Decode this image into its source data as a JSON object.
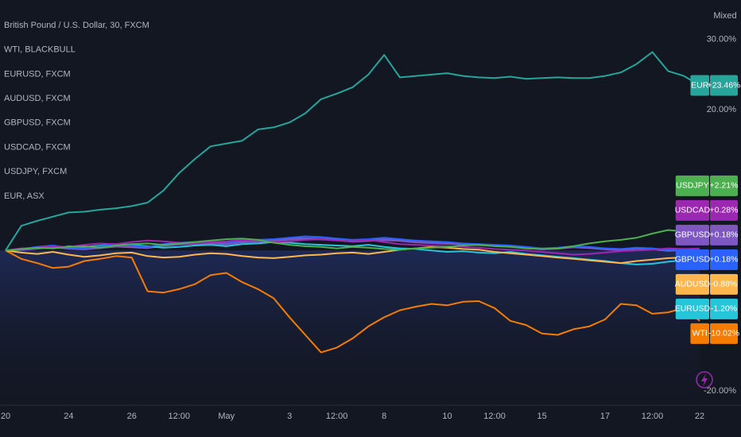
{
  "chart_data": {
    "type": "line",
    "scale_label": "Mixed",
    "categories": [
      "20",
      null,
      null,
      null,
      "24",
      null,
      null,
      null,
      "26",
      null,
      null,
      "12:00",
      null,
      null,
      "May",
      null,
      null,
      null,
      "3",
      null,
      null,
      "12:00",
      null,
      null,
      "8",
      null,
      null,
      null,
      "10",
      null,
      null,
      "12:00",
      null,
      null,
      "15",
      null,
      null,
      null,
      "17",
      null,
      null,
      "12:00",
      null,
      null,
      "22"
    ],
    "ylim": [
      -22,
      35.6
    ],
    "yticks": [
      {
        "value": 30,
        "label": "30.00%"
      },
      {
        "value": 20,
        "label": "20.00%"
      },
      {
        "value": -20,
        "label": "-20.00%"
      }
    ],
    "series": [
      {
        "name": "British Pound / U.S. Dollar, 30, FXCM",
        "tag": "GBPUSD",
        "color": "#7e57c2",
        "values": [
          0,
          0.1,
          0.3,
          0.5,
          0.3,
          0.2,
          0.4,
          0.6,
          0.5,
          0.4,
          0.7,
          0.9,
          1.0,
          1.1,
          0.9,
          1.2,
          1.3,
          1.4,
          1.6,
          1.7,
          1.6,
          1.5,
          1.3,
          1.4,
          1.5,
          1.4,
          1.2,
          1.1,
          1.0,
          0.9,
          0.8,
          0.7,
          0.6,
          0.4,
          0.2,
          0.3,
          0.5,
          0.4,
          0.2,
          0.1,
          0.3,
          0.2,
          0.0,
          0.1,
          0.18
        ],
        "value_labels": [
          null,
          null,
          null,
          null,
          null,
          null,
          null,
          null,
          null,
          null,
          null,
          null,
          null,
          null,
          null,
          null,
          null,
          null,
          null,
          null,
          null,
          null,
          null,
          null,
          null,
          null,
          null,
          null,
          null,
          null,
          null,
          null,
          null,
          null,
          null,
          null,
          null,
          null,
          null,
          null,
          null,
          null,
          null,
          null,
          "+0.18%"
        ]
      },
      {
        "name": "WTI, BLACKBULL",
        "tag": "WTI",
        "color": "#f57c00",
        "values": [
          0,
          -1.2,
          -1.8,
          -2.5,
          -2.3,
          -1.5,
          -1.2,
          -0.8,
          -1.0,
          -5.8,
          -6.0,
          -5.5,
          -4.8,
          -3.5,
          -3.2,
          -4.5,
          -5.5,
          -6.8,
          -9.5,
          -12,
          -14.5,
          -13.8,
          -12.5,
          -10.8,
          -9.5,
          -8.5,
          -8.0,
          -7.6,
          -7.8,
          -7.3,
          -7.2,
          -8.2,
          -10.0,
          -10.6,
          -11.8,
          -12.0,
          -11.2,
          -10.8,
          -9.8,
          -7.6,
          -7.8,
          -9.0,
          -8.8,
          -8.2,
          -10.02
        ],
        "value_labels": [
          null,
          null,
          null,
          null,
          null,
          null,
          null,
          null,
          null,
          null,
          null,
          null,
          null,
          null,
          null,
          null,
          null,
          null,
          null,
          null,
          null,
          null,
          null,
          null,
          null,
          null,
          null,
          null,
          null,
          null,
          null,
          null,
          null,
          null,
          null,
          null,
          null,
          null,
          null,
          null,
          null,
          null,
          null,
          null,
          "-10.02%"
        ]
      },
      {
        "name": "EURUSD, FXCM",
        "tag": "EURUSD",
        "color": "#26c6da",
        "values": [
          0,
          0.2,
          0.4,
          0.3,
          0.6,
          0.5,
          0.7,
          0.9,
          0.8,
          0.6,
          0.4,
          0.5,
          0.7,
          0.8,
          0.6,
          0.9,
          1.0,
          1.2,
          1.1,
          0.9,
          0.8,
          0.7,
          0.6,
          0.8,
          0.5,
          0.3,
          0.2,
          0.0,
          -0.2,
          -0.1,
          -0.3,
          -0.4,
          -0.2,
          -0.5,
          -0.7,
          -0.9,
          -1.1,
          -1.3,
          -1.5,
          -1.8,
          -2.0,
          -1.9,
          -1.6,
          -1.4,
          -1.2
        ],
        "value_labels": [
          null,
          null,
          null,
          null,
          null,
          null,
          null,
          null,
          null,
          null,
          null,
          null,
          null,
          null,
          null,
          null,
          null,
          null,
          null,
          null,
          null,
          null,
          null,
          null,
          null,
          null,
          null,
          null,
          null,
          null,
          null,
          null,
          null,
          null,
          null,
          null,
          null,
          null,
          null,
          null,
          null,
          null,
          null,
          null,
          "-1.20%"
        ]
      },
      {
        "name": "AUDUSD, FXCM",
        "tag": "AUDUSD",
        "color": "#ffb74d",
        "values": [
          0,
          -0.3,
          -0.5,
          -0.2,
          -0.6,
          -0.9,
          -0.7,
          -0.4,
          -0.3,
          -0.8,
          -1.0,
          -0.9,
          -0.6,
          -0.4,
          -0.5,
          -0.8,
          -1.0,
          -1.1,
          -0.9,
          -0.7,
          -0.6,
          -0.4,
          -0.3,
          -0.5,
          -0.2,
          0.1,
          0.3,
          0.5,
          0.4,
          0.2,
          0.1,
          -0.2,
          -0.4,
          -0.6,
          -0.8,
          -1.0,
          -1.2,
          -1.4,
          -1.6,
          -1.8,
          -1.5,
          -1.3,
          -1.1,
          -1.0,
          -0.88
        ],
        "value_labels": [
          null,
          null,
          null,
          null,
          null,
          null,
          null,
          null,
          null,
          null,
          null,
          null,
          null,
          null,
          null,
          null,
          null,
          null,
          null,
          null,
          null,
          null,
          null,
          null,
          null,
          null,
          null,
          null,
          null,
          null,
          null,
          null,
          null,
          null,
          null,
          null,
          null,
          null,
          null,
          null,
          null,
          null,
          null,
          null,
          "-0.88%"
        ]
      },
      {
        "name": "GBPUSD, FXCM",
        "tag": "GBPUSD",
        "color": "#2962ff",
        "values": [
          0,
          0.2,
          0.5,
          0.7,
          0.4,
          0.3,
          0.6,
          0.8,
          0.7,
          0.5,
          0.9,
          1.1,
          1.2,
          1.3,
          1.1,
          1.4,
          1.5,
          1.6,
          1.8,
          2.0,
          1.9,
          1.7,
          1.5,
          1.6,
          1.8,
          1.6,
          1.4,
          1.3,
          1.2,
          1.0,
          0.9,
          0.8,
          0.7,
          0.5,
          0.3,
          0.4,
          0.6,
          0.5,
          0.3,
          0.2,
          0.4,
          0.3,
          0.1,
          0.2,
          0.18
        ],
        "value_labels": [
          null,
          null,
          null,
          null,
          null,
          null,
          null,
          null,
          null,
          null,
          null,
          null,
          null,
          null,
          null,
          null,
          null,
          null,
          null,
          null,
          null,
          null,
          null,
          null,
          null,
          null,
          null,
          null,
          null,
          null,
          null,
          null,
          null,
          null,
          null,
          null,
          null,
          null,
          null,
          null,
          null,
          null,
          null,
          null,
          "+0.18%"
        ]
      },
      {
        "name": "USDCAD, FXCM",
        "tag": "USDCAD",
        "color": "#9c27b0",
        "values": [
          0,
          0.3,
          0.4,
          0.6,
          0.5,
          0.8,
          1.0,
          0.9,
          1.2,
          1.4,
          1.3,
          1.1,
          1.0,
          1.2,
          1.3,
          1.5,
          1.4,
          1.2,
          1.3,
          1.5,
          1.6,
          1.4,
          1.3,
          1.5,
          1.2,
          0.9,
          0.8,
          0.7,
          0.6,
          0.5,
          0.4,
          0.2,
          0.1,
          0.0,
          -0.2,
          -0.4,
          -0.6,
          -0.5,
          -0.3,
          -0.1,
          0.0,
          0.1,
          0.3,
          0.2,
          0.28
        ],
        "value_labels": [
          null,
          null,
          null,
          null,
          null,
          null,
          null,
          null,
          null,
          null,
          null,
          null,
          null,
          null,
          null,
          null,
          null,
          null,
          null,
          null,
          null,
          null,
          null,
          null,
          null,
          null,
          null,
          null,
          null,
          null,
          null,
          null,
          null,
          null,
          null,
          null,
          null,
          null,
          null,
          null,
          null,
          null,
          null,
          null,
          "+0.28%"
        ]
      },
      {
        "name": "USDJPY, FXCM",
        "tag": "USDJPY",
        "color": "#4caf50",
        "values": [
          0,
          0.2,
          0.4,
          0.3,
          0.5,
          0.6,
          0.4,
          0.7,
          0.9,
          1.0,
          0.8,
          1.0,
          1.2,
          1.4,
          1.6,
          1.7,
          1.5,
          1.1,
          0.8,
          0.6,
          0.5,
          0.3,
          0.5,
          0.4,
          0.2,
          0.1,
          0.3,
          0.4,
          0.5,
          0.7,
          0.8,
          0.6,
          0.5,
          0.3,
          0.2,
          0.3,
          0.6,
          1.0,
          1.3,
          1.5,
          1.8,
          2.4,
          2.9,
          2.7,
          2.21
        ],
        "value_labels": [
          null,
          null,
          null,
          null,
          null,
          null,
          null,
          null,
          null,
          null,
          null,
          null,
          null,
          null,
          null,
          null,
          null,
          null,
          null,
          null,
          null,
          null,
          null,
          null,
          null,
          null,
          null,
          null,
          null,
          null,
          null,
          null,
          null,
          null,
          null,
          null,
          null,
          null,
          null,
          null,
          null,
          null,
          null,
          null,
          "+2.21%"
        ]
      },
      {
        "name": "EUR, ASX",
        "tag": "EUR",
        "color": "#26a69a",
        "values": [
          0,
          3.5,
          4.2,
          4.8,
          5.4,
          5.5,
          5.8,
          6.0,
          6.3,
          6.8,
          8.5,
          11,
          13,
          14.8,
          15.2,
          15.6,
          17.2,
          17.5,
          18.2,
          19.5,
          21.5,
          22.3,
          23.2,
          25,
          27.8,
          24.6,
          24.8,
          25,
          25.2,
          24.8,
          24.6,
          24.5,
          24.7,
          24.4,
          24.5,
          24.6,
          24.5,
          24.5,
          24.8,
          25.3,
          26.5,
          28.2,
          25.5,
          24.8,
          23.46
        ],
        "value_labels": [
          null,
          null,
          null,
          null,
          null,
          null,
          null,
          null,
          null,
          null,
          null,
          null,
          null,
          null,
          null,
          null,
          null,
          null,
          null,
          null,
          null,
          null,
          null,
          null,
          null,
          null,
          null,
          null,
          null,
          null,
          null,
          null,
          null,
          null,
          null,
          null,
          null,
          null,
          null,
          null,
          null,
          null,
          null,
          null,
          "+23.46%"
        ]
      }
    ]
  }
}
